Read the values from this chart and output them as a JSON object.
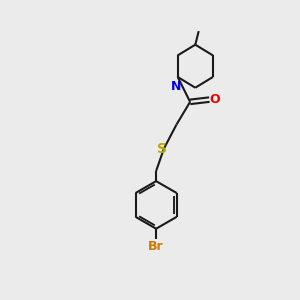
{
  "bg_color": "#ebebeb",
  "bond_color": "#1a1a1a",
  "N_color": "#0000ee",
  "O_color": "#ee0000",
  "S_color": "#bbaa00",
  "Br_color": "#cc7700",
  "line_width": 1.5,
  "figsize": [
    3.0,
    3.0
  ],
  "dpi": 100,
  "xlim": [
    0,
    10
  ],
  "ylim": [
    0,
    13
  ]
}
